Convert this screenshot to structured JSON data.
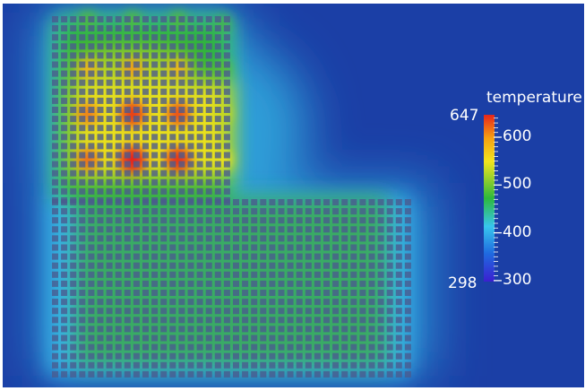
{
  "colorbar": {
    "title": "temperature",
    "range_max": "647",
    "range_min": "298",
    "tick_labels": [
      "600",
      "500",
      "400",
      "300"
    ],
    "tick_values": [
      600,
      500,
      400,
      300
    ],
    "vmin": 298,
    "vmax": 647,
    "colormap": [
      "#3b1fd0",
      "#1f6be0",
      "#38c6ee",
      "#2db83c",
      "#f2e51d",
      "#f5a011",
      "#e8251b"
    ]
  },
  "scene": {
    "background_color": "#1b3fa6",
    "grid_cell_color": "#4a5a8e"
  }
}
